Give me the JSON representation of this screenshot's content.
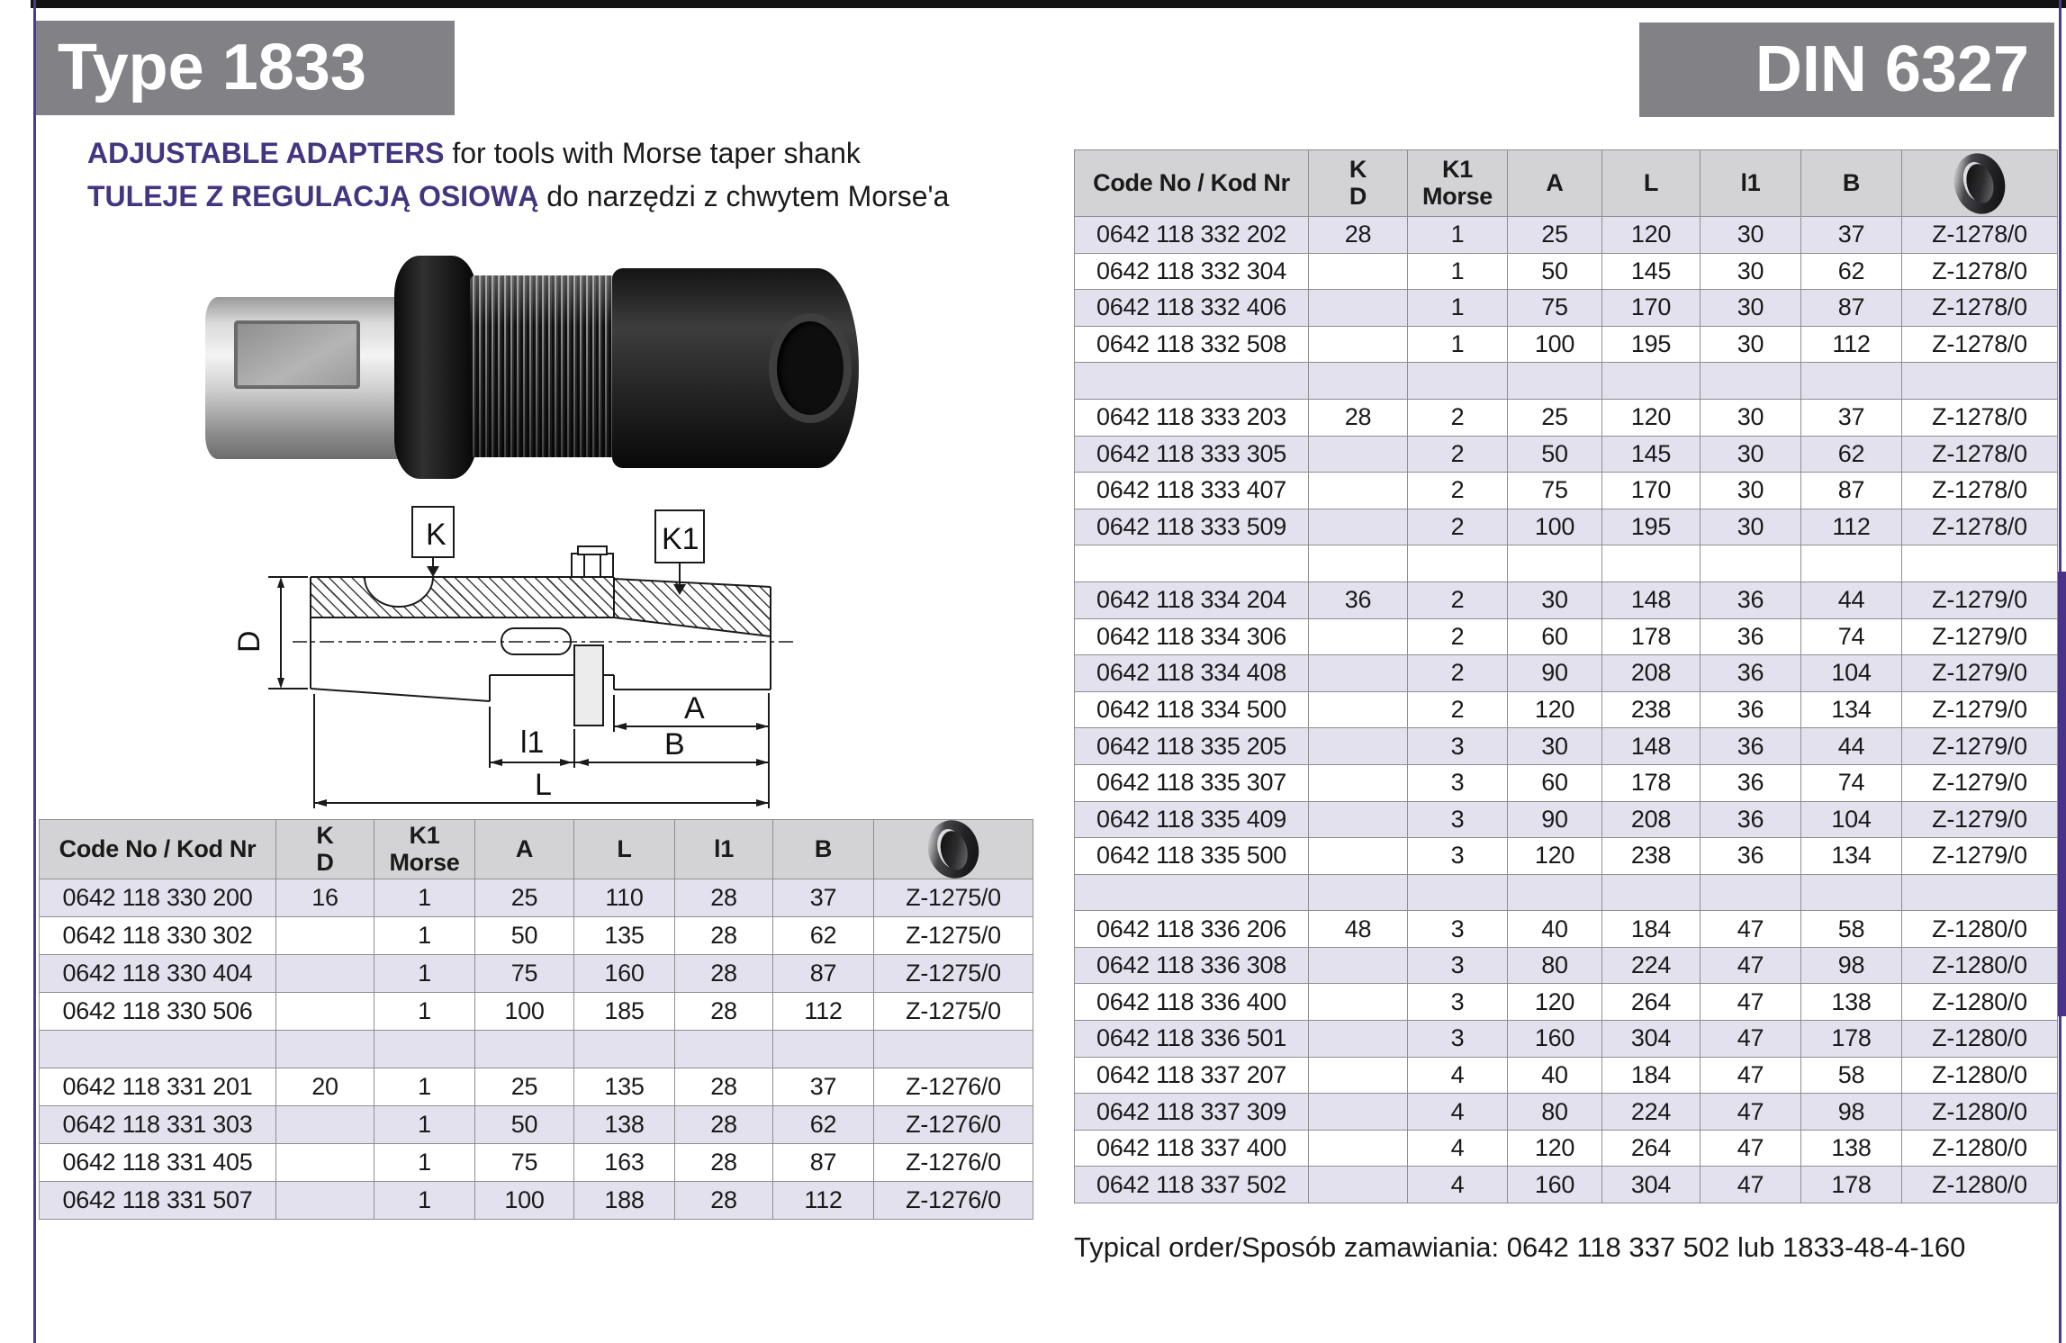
{
  "header": {
    "type_label": "Type 1833",
    "din_label": "DIN 6327"
  },
  "intro": {
    "en_bold": "ADJUSTABLE ADAPTERS",
    "en_rest": " for tools with Morse taper shank",
    "pl_bold": "TULEJE Z REGULACJĄ OSIOWĄ",
    "pl_rest": " do narzędzi z chwytem Morse'a"
  },
  "diagram": {
    "labels": {
      "k": "K",
      "k1": "K1",
      "d": "D",
      "a": "A",
      "b": "B",
      "l1": "l1",
      "l": "L"
    }
  },
  "tables": {
    "headers": [
      [
        "Code No / Kod Nr"
      ],
      [
        "K",
        "D"
      ],
      [
        "K1",
        "Morse"
      ],
      [
        "A"
      ],
      [
        "L"
      ],
      [
        "l1"
      ],
      [
        "B"
      ]
    ],
    "ring_column_icon": "black-ring-photo",
    "left_rows": [
      [
        "0642 118 330 200",
        "16",
        "1",
        "25",
        "110",
        "28",
        "37",
        "Z-1275/0"
      ],
      [
        "0642 118 330 302",
        "",
        "1",
        "50",
        "135",
        "28",
        "62",
        "Z-1275/0"
      ],
      [
        "0642 118 330 404",
        "",
        "1",
        "75",
        "160",
        "28",
        "87",
        "Z-1275/0"
      ],
      [
        "0642 118 330 506",
        "",
        "1",
        "100",
        "185",
        "28",
        "112",
        "Z-1275/0"
      ],
      [
        "",
        "",
        "",
        "",
        "",
        "",
        "",
        ""
      ],
      [
        "0642 118 331 201",
        "20",
        "1",
        "25",
        "135",
        "28",
        "37",
        "Z-1276/0"
      ],
      [
        "0642 118 331 303",
        "",
        "1",
        "50",
        "138",
        "28",
        "62",
        "Z-1276/0"
      ],
      [
        "0642 118 331 405",
        "",
        "1",
        "75",
        "163",
        "28",
        "87",
        "Z-1276/0"
      ],
      [
        "0642 118 331 507",
        "",
        "1",
        "100",
        "188",
        "28",
        "112",
        "Z-1276/0"
      ]
    ],
    "right_rows": [
      [
        "0642 118 332 202",
        "28",
        "1",
        "25",
        "120",
        "30",
        "37",
        "Z-1278/0"
      ],
      [
        "0642 118 332 304",
        "",
        "1",
        "50",
        "145",
        "30",
        "62",
        "Z-1278/0"
      ],
      [
        "0642 118 332 406",
        "",
        "1",
        "75",
        "170",
        "30",
        "87",
        "Z-1278/0"
      ],
      [
        "0642 118 332 508",
        "",
        "1",
        "100",
        "195",
        "30",
        "112",
        "Z-1278/0"
      ],
      [
        "",
        "",
        "",
        "",
        "",
        "",
        "",
        ""
      ],
      [
        "0642 118 333 203",
        "28",
        "2",
        "25",
        "120",
        "30",
        "37",
        "Z-1278/0"
      ],
      [
        "0642 118 333 305",
        "",
        "2",
        "50",
        "145",
        "30",
        "62",
        "Z-1278/0"
      ],
      [
        "0642 118 333 407",
        "",
        "2",
        "75",
        "170",
        "30",
        "87",
        "Z-1278/0"
      ],
      [
        "0642 118 333 509",
        "",
        "2",
        "100",
        "195",
        "30",
        "112",
        "Z-1278/0"
      ],
      [
        "",
        "",
        "",
        "",
        "",
        "",
        "",
        ""
      ],
      [
        "0642 118 334 204",
        "36",
        "2",
        "30",
        "148",
        "36",
        "44",
        "Z-1279/0"
      ],
      [
        "0642 118 334 306",
        "",
        "2",
        "60",
        "178",
        "36",
        "74",
        "Z-1279/0"
      ],
      [
        "0642 118 334 408",
        "",
        "2",
        "90",
        "208",
        "36",
        "104",
        "Z-1279/0"
      ],
      [
        "0642 118 334 500",
        "",
        "2",
        "120",
        "238",
        "36",
        "134",
        "Z-1279/0"
      ],
      [
        "0642 118 335 205",
        "",
        "3",
        "30",
        "148",
        "36",
        "44",
        "Z-1279/0"
      ],
      [
        "0642 118 335 307",
        "",
        "3",
        "60",
        "178",
        "36",
        "74",
        "Z-1279/0"
      ],
      [
        "0642 118 335 409",
        "",
        "3",
        "90",
        "208",
        "36",
        "104",
        "Z-1279/0"
      ],
      [
        "0642 118 335 500",
        "",
        "3",
        "120",
        "238",
        "36",
        "134",
        "Z-1279/0"
      ],
      [
        "",
        "",
        "",
        "",
        "",
        "",
        "",
        ""
      ],
      [
        "0642 118 336 206",
        "48",
        "3",
        "40",
        "184",
        "47",
        "58",
        "Z-1280/0"
      ],
      [
        "0642 118 336 308",
        "",
        "3",
        "80",
        "224",
        "47",
        "98",
        "Z-1280/0"
      ],
      [
        "0642 118 336 400",
        "",
        "3",
        "120",
        "264",
        "47",
        "138",
        "Z-1280/0"
      ],
      [
        "0642 118 336 501",
        "",
        "3",
        "160",
        "304",
        "47",
        "178",
        "Z-1280/0"
      ],
      [
        "0642 118 337 207",
        "",
        "4",
        "40",
        "184",
        "47",
        "58",
        "Z-1280/0"
      ],
      [
        "0642 118 337 309",
        "",
        "4",
        "80",
        "224",
        "47",
        "98",
        "Z-1280/0"
      ],
      [
        "0642 118 337 400",
        "",
        "4",
        "120",
        "264",
        "47",
        "138",
        "Z-1280/0"
      ],
      [
        "0642 118 337 502",
        "",
        "4",
        "160",
        "304",
        "47",
        "178",
        "Z-1280/0"
      ]
    ]
  },
  "footer": {
    "typical_order": "Typical order/Sposób zamawiania: 0642 118 337 502 lub 1833-48-4-160"
  },
  "colors": {
    "accent_purple": "#443580",
    "edge_line_purple": "#4b3a8e",
    "edge_tab_purple": "#483389",
    "panel_gray": "#828286",
    "table_header_gray": "#d3d3d5",
    "row_alt_lavender": "#e4e1ef"
  }
}
